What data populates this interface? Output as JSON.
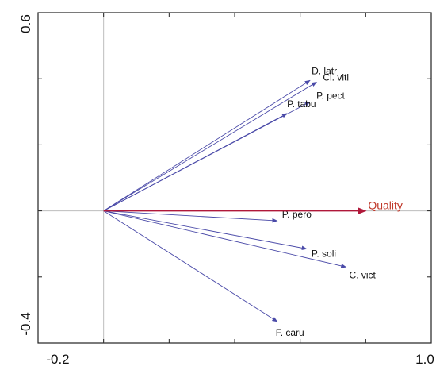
{
  "colors": {
    "species_arrow": "#4a4aa8",
    "env_arrow": "#b0183a",
    "env_label": "#c0392b",
    "axis_line": "#bdbdbd",
    "frame": "#222222"
  },
  "chart_data": {
    "type": "biplot",
    "title": "",
    "xlabel": "",
    "ylabel": "",
    "xlim": [
      -0.2,
      1.0
    ],
    "ylim": [
      -0.4,
      0.6
    ],
    "x_tick_labels": [
      "-0.2",
      "1.0"
    ],
    "y_tick_labels": [
      "0.6",
      "-0.4"
    ],
    "origin": [
      0,
      0
    ],
    "environmental_vectors": [
      {
        "label": "Quality",
        "x": 0.8,
        "y": 0.0
      }
    ],
    "species_vectors": [
      {
        "label": "D. latr",
        "x": 0.63,
        "y": 0.395
      },
      {
        "label": "Cl. viti",
        "x": 0.65,
        "y": 0.39
      },
      {
        "label": "P. pect",
        "x": 0.63,
        "y": 0.33
      },
      {
        "label": "P. tabu",
        "x": 0.56,
        "y": 0.295
      },
      {
        "label": "P. pero",
        "x": 0.53,
        "y": -0.03
      },
      {
        "label": "P. soli",
        "x": 0.62,
        "y": -0.115
      },
      {
        "label": "C. vict",
        "x": 0.74,
        "y": -0.17
      },
      {
        "label": "F. caru",
        "x": 0.53,
        "y": -0.335
      }
    ]
  }
}
